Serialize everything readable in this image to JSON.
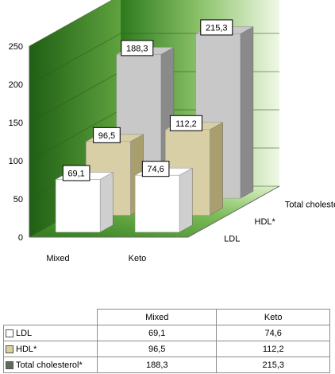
{
  "chart_data": {
    "type": "bar",
    "categories": [
      "Mixed",
      "Keto"
    ],
    "series": [
      {
        "name": "LDL",
        "values": [
          69.1,
          74.6
        ],
        "labels": [
          "69,1",
          "74,6"
        ],
        "color": "#ffffff",
        "side": "#cfcfcf"
      },
      {
        "name": "HDL*",
        "values": [
          96.5,
          112.2
        ],
        "labels": [
          "96,5",
          "112,2"
        ],
        "color": "#d8cfa6",
        "side": "#a89e6e"
      },
      {
        "name": "Total cholesterol*",
        "values": [
          188.3,
          215.3
        ],
        "labels": [
          "188,3",
          "215,3"
        ],
        "color": "#c8c8c8",
        "side": "#8a8a8a"
      }
    ],
    "ylim": [
      0,
      250
    ],
    "yticks": [
      0,
      50,
      100,
      150,
      200,
      250
    ],
    "grid": true,
    "projection": "3d"
  },
  "table": {
    "headers": [
      "Mixed",
      "Keto"
    ],
    "rows": [
      {
        "series": "LDL",
        "values": [
          "69,1",
          "74,6"
        ],
        "swatch": "#ffffff"
      },
      {
        "series": "HDL*",
        "values": [
          "96,5",
          "112,2"
        ],
        "swatch": "#d8cfa6"
      },
      {
        "series": "Total cholesterol*",
        "values": [
          "188,3",
          "215,3"
        ],
        "swatch": "#5f6b5a"
      }
    ]
  },
  "colors": {
    "wall_dark": "#2f7a1e",
    "wall_light": "#eef6e0",
    "floor_dark": "#3b8a22",
    "floor_light": "#d9edc4"
  }
}
